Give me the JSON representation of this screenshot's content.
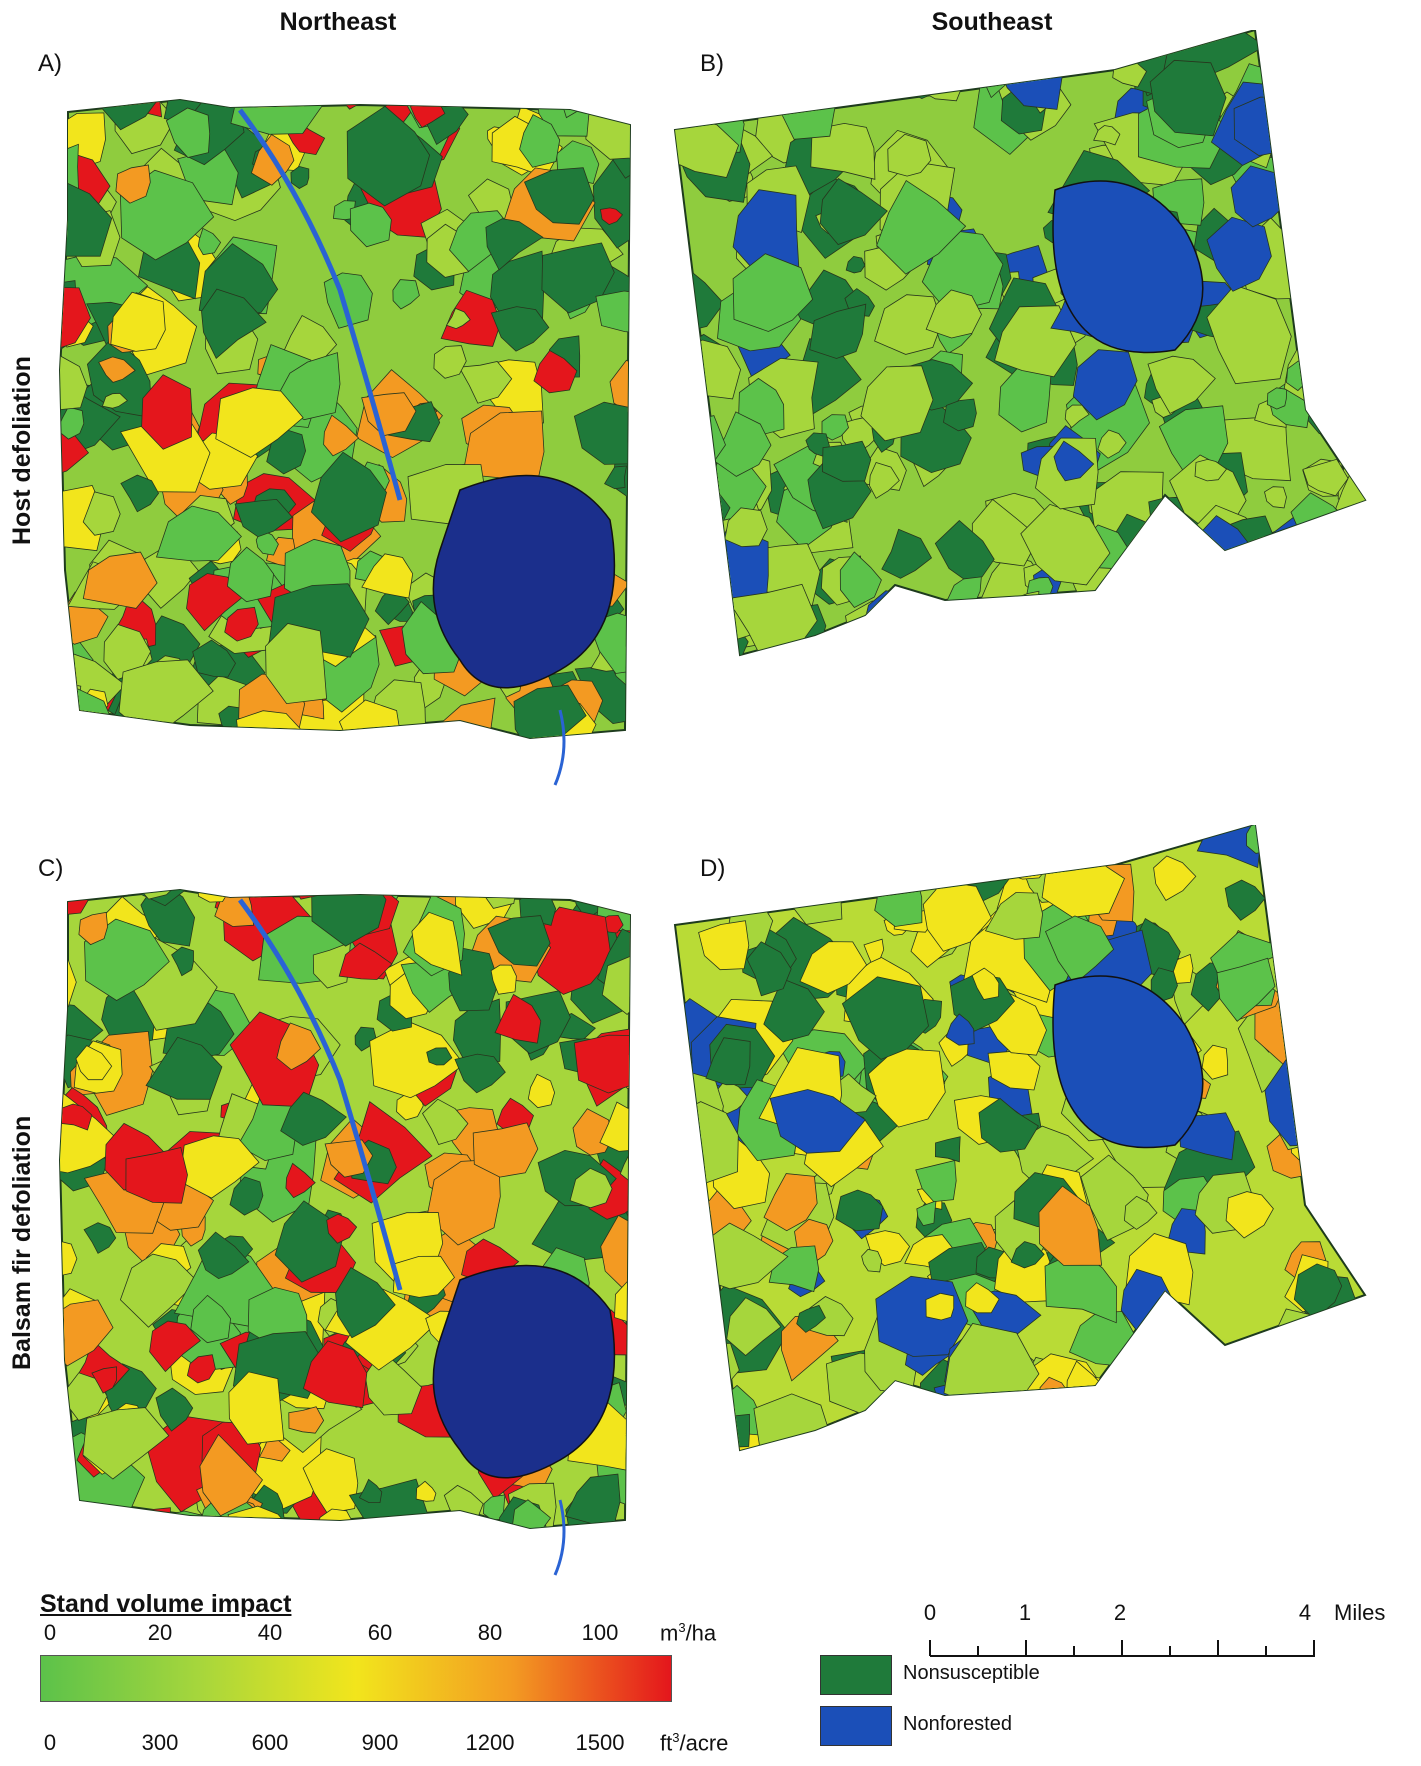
{
  "columns": {
    "left": "Northeast",
    "right": "Southeast"
  },
  "rows": {
    "top": "Host defoliation",
    "bottom": "Balsam fir defoliation"
  },
  "panels": [
    "A)",
    "B)",
    "C)",
    "D)"
  ],
  "colors": {
    "nonsusceptible": "#1f7a3a",
    "nonforested": "#1b4fb8",
    "ramp": [
      "#5cc24a",
      "#a6d63c",
      "#f2e51c",
      "#f39a22",
      "#e4161c"
    ]
  },
  "legend": {
    "title": "Stand volume impact",
    "metric_ticks": [
      "0",
      "20",
      "40",
      "60",
      "80",
      "100"
    ],
    "metric_unit_base": "m",
    "metric_unit_sup": "3",
    "metric_unit_rest": "/ha",
    "imperial_ticks": [
      "0",
      "300",
      "600",
      "900",
      "1200",
      "1500"
    ],
    "imperial_unit_base": "ft",
    "imperial_unit_sup": "3",
    "imperial_unit_rest": "/acre"
  },
  "scale_bar": {
    "labels": [
      "0",
      "1",
      "2",
      "4"
    ],
    "unit": "Miles"
  },
  "categories": {
    "nonsusceptible": "Nonsusceptible",
    "nonforested": "Nonforested"
  }
}
